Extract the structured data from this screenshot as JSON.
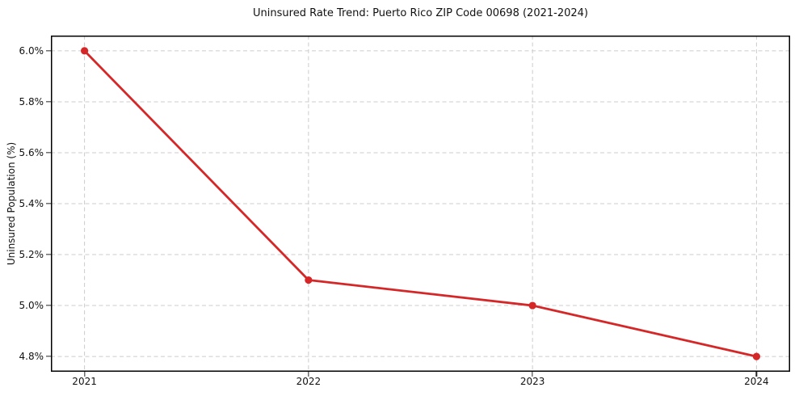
{
  "chart_data": {
    "type": "line",
    "title": "Uninsured Rate Trend: Puerto Rico ZIP Code 00698 (2021-2024)",
    "xlabel": "",
    "ylabel": "Uninsured Population (%)",
    "categories": [
      "2021",
      "2022",
      "2023",
      "2024"
    ],
    "values": [
      6.0,
      5.1,
      5.0,
      4.8
    ],
    "yticks": [
      {
        "value": 6.0,
        "label": "6.0%"
      },
      {
        "value": 5.8,
        "label": "5.8%"
      },
      {
        "value": 5.6,
        "label": "5.6%"
      },
      {
        "value": 5.4,
        "label": "5.4%"
      },
      {
        "value": 5.2,
        "label": "5.2%"
      },
      {
        "value": 5.0,
        "label": "5.0%"
      },
      {
        "value": 4.8,
        "label": "4.8%"
      }
    ],
    "ylim": [
      4.74,
      6.06
    ],
    "grid": "dashed-both-axes",
    "legend_position": "none",
    "marker": "circle",
    "line_color": "#d62728",
    "grid_color": "#cccccc",
    "frame_color": "#000000",
    "background_color": "#ffffff"
  }
}
